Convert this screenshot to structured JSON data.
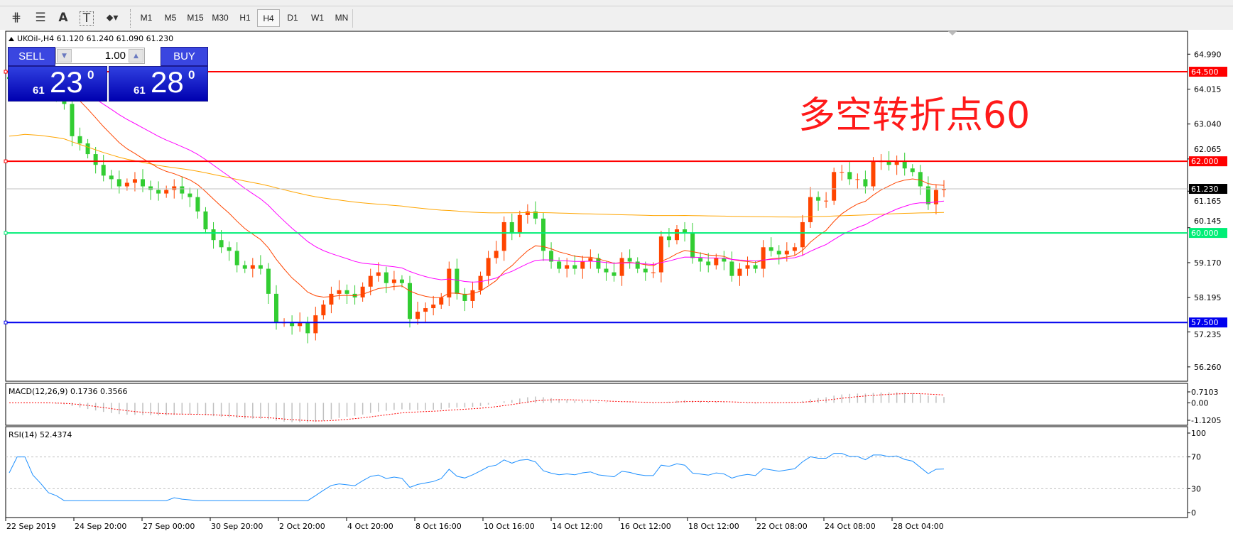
{
  "toolbar": {
    "tools": [
      {
        "icon": "fibonacci-expansion-icon",
        "glyph": "⋕"
      },
      {
        "icon": "fibonacci-fan-icon",
        "glyph": "☰"
      },
      {
        "icon": "text-icon",
        "glyph": "A"
      },
      {
        "icon": "text-label-icon",
        "glyph": "T"
      },
      {
        "icon": "arrows-dropdown-icon",
        "glyph": "⬥▾"
      }
    ],
    "timeframes": [
      "M1",
      "M5",
      "M15",
      "M30",
      "H1",
      "H4",
      "D1",
      "W1",
      "MN"
    ],
    "active_timeframe": "H4"
  },
  "chart": {
    "header": "UKOil-,H4  61.120 61.240 61.090 61.230",
    "annotation": "多空转折点60",
    "price_ticks": [
      "64.990",
      "64.015",
      "63.040",
      "62.065",
      "61.165",
      "60.145",
      "59.170",
      "58.195",
      "57.235",
      "56.260"
    ],
    "price_tick_values": [
      64.99,
      64.015,
      63.04,
      62.065,
      61.165,
      60.145,
      59.17,
      58.195,
      57.235,
      56.26
    ],
    "levels": [
      {
        "value": 64.5,
        "label": "64.500",
        "color": "#ff0000"
      },
      {
        "value": 62.0,
        "label": "62.000",
        "color": "#ff0000"
      },
      {
        "value": 60.0,
        "label": "60.000",
        "color": "#00ee76"
      },
      {
        "value": 57.5,
        "label": "57.500",
        "color": "#0000ee"
      }
    ],
    "current_price": {
      "value": 61.23,
      "label": "61.230"
    },
    "date_labels": [
      "22 Sep 2019",
      "24 Sep 20:00",
      "27 Sep 00:00",
      "30 Sep 20:00",
      "2 Oct 20:00",
      "4 Oct 20:00",
      "8 Oct 16:00",
      "10 Oct 16:00",
      "14 Oct 12:00",
      "16 Oct 12:00",
      "18 Oct 12:00",
      "22 Oct 08:00",
      "24 Oct 08:00",
      "28 Oct 04:00"
    ],
    "colors": {
      "bull": "#ff4500",
      "bear": "#32cd32",
      "ma_fast": "#ff4500",
      "ma_mid": "#ff00ff",
      "ma_slow": "#ffa500"
    }
  },
  "trade_panel": {
    "sell_label": "SELL",
    "buy_label": "BUY",
    "lot": "1.00",
    "sell_price": {
      "small": "61",
      "big": "23",
      "sup": "0"
    },
    "buy_price": {
      "small": "61",
      "big": "28",
      "sup": "0"
    }
  },
  "macd": {
    "label": "MACD(12,26,9) 0.1736 0.3566",
    "ticks": [
      "0.7103",
      "0.00",
      "-1.1205"
    ],
    "tick_values": [
      0.7103,
      0,
      -1.1205
    ]
  },
  "rsi": {
    "label": "RSI(14) 52.4374",
    "ticks": [
      "100",
      "70",
      "30",
      "0"
    ],
    "tick_values": [
      100,
      70,
      30,
      0
    ],
    "levels": [
      70,
      30
    ]
  },
  "chart_data": {
    "type": "candlestick",
    "closes": [
      64.3,
      64.4,
      64.5,
      64.3,
      64.2,
      64.0,
      63.9,
      63.6,
      62.7,
      62.5,
      62.2,
      61.9,
      61.6,
      61.5,
      61.3,
      61.4,
      61.5,
      61.3,
      61.2,
      61.1,
      61.2,
      61.3,
      61.1,
      61.0,
      60.6,
      60.1,
      59.8,
      59.6,
      59.5,
      59.1,
      59.0,
      59.1,
      59.0,
      58.3,
      57.5,
      57.5,
      57.4,
      57.5,
      57.2,
      57.7,
      58.0,
      58.3,
      58.4,
      58.3,
      58.2,
      58.5,
      58.8,
      58.9,
      58.6,
      58.7,
      58.6,
      57.6,
      57.8,
      57.9,
      58.0,
      58.2,
      59.0,
      58.3,
      58.1,
      58.4,
      58.8,
      59.3,
      59.5,
      60.3,
      60.0,
      60.5,
      60.6,
      60.4,
      59.5,
      59.2,
      59.0,
      59.1,
      59.0,
      59.2,
      59.3,
      59.0,
      58.9,
      58.8,
      59.3,
      59.2,
      59.0,
      58.9,
      58.9,
      59.9,
      59.8,
      60.1,
      60.0,
      59.3,
      59.2,
      59.1,
      59.3,
      59.2,
      58.8,
      59.0,
      59.1,
      59.0,
      59.6,
      59.5,
      59.4,
      59.5,
      59.6,
      60.3,
      61.0,
      60.9,
      60.9,
      61.7,
      61.7,
      61.5,
      61.5,
      61.3,
      62.0,
      62.0,
      61.9,
      62.0,
      61.8,
      61.7,
      61.3,
      60.8,
      61.2,
      61.23
    ],
    "ylim": [
      55.86,
      65.63
    ]
  }
}
